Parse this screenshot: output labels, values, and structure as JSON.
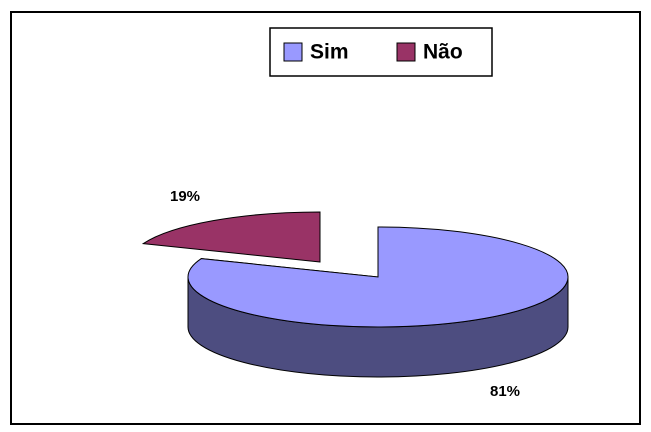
{
  "chart_data": {
    "type": "pie",
    "categories": [
      "Sim",
      "Não"
    ],
    "values": [
      81,
      19
    ],
    "value_labels": [
      "81%",
      "19%"
    ],
    "colors": [
      "#9999ff",
      "#993366"
    ],
    "legend": "top"
  }
}
